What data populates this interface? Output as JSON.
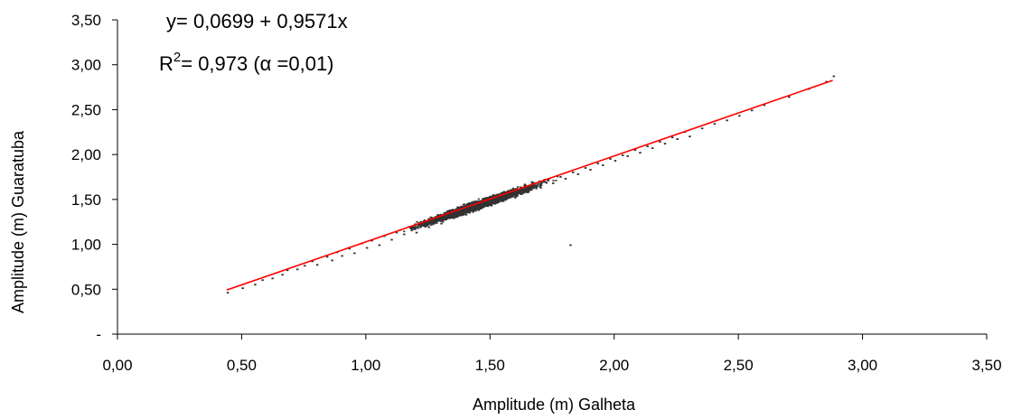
{
  "chart_data": {
    "type": "scatter",
    "title": "",
    "xlabel": "Amplitude (m) Galheta",
    "ylabel": "Amplitude (m) Guaratuba",
    "xlim": [
      0,
      3.5
    ],
    "ylim": [
      0,
      3.5
    ],
    "x_ticks": [
      "0,00",
      "0,50",
      "1,00",
      "1,50",
      "2,00",
      "2,50",
      "3,00",
      "3,50"
    ],
    "y_ticks": [
      "-",
      "0,50",
      "1,00",
      "1,50",
      "2,00",
      "2,50",
      "3,00",
      "3,50"
    ],
    "grid": false,
    "legend": "none",
    "point_color": "#333333",
    "line_color": "#ff0000",
    "regression": {
      "intercept": 0.0699,
      "slope": 0.9571,
      "x_range": [
        0.44,
        2.88
      ]
    },
    "equation_line1": "y= 0,0699 + 0,9571x",
    "equation_line2_prefix": "R",
    "equation_line2_superscript": "2",
    "equation_line2_suffix": "= 0,973 (α =0,01)",
    "series": [
      {
        "points": [
          [
            0.44,
            0.47
          ],
          [
            0.5,
            0.52
          ],
          [
            0.55,
            0.56
          ],
          [
            0.58,
            0.61
          ],
          [
            0.62,
            0.63
          ],
          [
            0.66,
            0.67
          ],
          [
            0.68,
            0.72
          ],
          [
            0.72,
            0.73
          ],
          [
            0.75,
            0.77
          ],
          [
            0.78,
            0.82
          ],
          [
            0.8,
            0.78
          ],
          [
            0.84,
            0.87
          ],
          [
            0.86,
            0.83
          ],
          [
            0.88,
            0.92
          ],
          [
            0.9,
            0.88
          ],
          [
            0.93,
            0.96
          ],
          [
            0.95,
            0.91
          ],
          [
            0.98,
            1.02
          ],
          [
            1.0,
            0.97
          ],
          [
            1.02,
            1.05
          ],
          [
            1.05,
            1.0
          ],
          [
            1.07,
            1.1
          ],
          [
            1.1,
            1.06
          ],
          [
            1.12,
            1.14
          ],
          [
            1.15,
            1.12
          ],
          [
            1.18,
            1.18
          ],
          [
            1.2,
            1.14
          ],
          [
            1.22,
            1.24
          ],
          [
            1.25,
            1.2
          ],
          [
            1.28,
            1.28
          ],
          [
            1.3,
            1.24
          ],
          [
            1.33,
            1.33
          ],
          [
            1.35,
            1.3
          ],
          [
            1.38,
            1.38
          ],
          [
            1.4,
            1.34
          ],
          [
            1.43,
            1.43
          ],
          [
            1.45,
            1.39
          ],
          [
            1.48,
            1.48
          ],
          [
            1.5,
            1.44
          ],
          [
            1.53,
            1.52
          ],
          [
            1.55,
            1.49
          ],
          [
            1.58,
            1.57
          ],
          [
            1.6,
            1.54
          ],
          [
            1.63,
            1.62
          ],
          [
            1.65,
            1.59
          ],
          [
            1.68,
            1.66
          ],
          [
            1.7,
            1.64
          ],
          [
            1.73,
            1.72
          ],
          [
            1.75,
            1.69
          ],
          [
            1.78,
            1.76
          ],
          [
            1.8,
            1.74
          ],
          [
            1.83,
            1.81
          ],
          [
            1.85,
            1.79
          ],
          [
            1.88,
            1.86
          ],
          [
            1.9,
            1.84
          ],
          [
            1.93,
            1.91
          ],
          [
            1.95,
            1.89
          ],
          [
            1.98,
            1.96
          ],
          [
            2.0,
            1.94
          ],
          [
            2.03,
            2.0
          ],
          [
            2.05,
            1.99
          ],
          [
            2.08,
            2.06
          ],
          [
            2.1,
            2.03
          ],
          [
            2.13,
            2.1
          ],
          [
            2.15,
            2.08
          ],
          [
            2.18,
            2.15
          ],
          [
            2.2,
            2.13
          ],
          [
            2.23,
            2.2
          ],
          [
            2.25,
            2.18
          ],
          [
            2.28,
            2.26
          ],
          [
            2.3,
            2.21
          ],
          [
            2.35,
            2.3
          ],
          [
            2.4,
            2.35
          ],
          [
            2.45,
            2.39
          ],
          [
            2.5,
            2.44
          ],
          [
            2.55,
            2.5
          ],
          [
            2.6,
            2.56
          ],
          [
            2.7,
            2.65
          ],
          [
            2.78,
            2.74
          ],
          [
            2.85,
            2.82
          ],
          [
            2.88,
            2.88
          ],
          [
            1.82,
            1.0
          ]
        ]
      }
    ]
  }
}
